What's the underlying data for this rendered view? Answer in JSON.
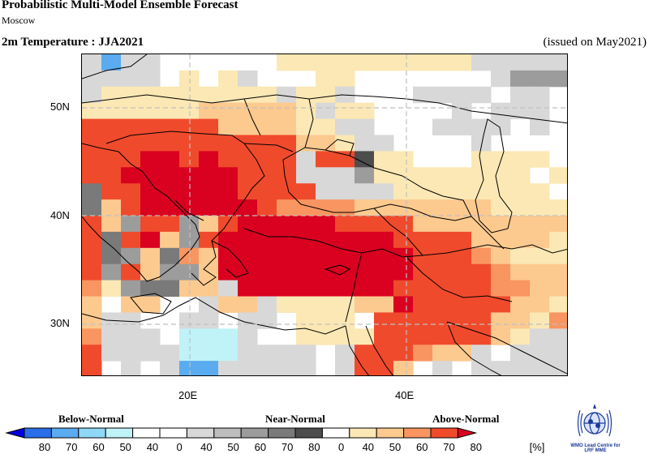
{
  "header": {
    "title": "Probabilistic Multi-Model Ensemble Forecast",
    "subtitle": "Moscow",
    "variable": "2m Temperature : JJA2021",
    "issued": "(issued on May2021)"
  },
  "map": {
    "lat_labels": [
      "50N",
      "40N",
      "30N"
    ],
    "lon_labels": [
      "20E",
      "40E"
    ],
    "category_colors": {
      "below_40": "#bff3f7",
      "below_50": "#8fd8f5",
      "below_60": "#5aabf0",
      "below_70": "#2a6fe8",
      "below_80": "#0000e0",
      "normal_40": "#d8d8d8",
      "normal_50": "#bdbdbd",
      "normal_60": "#9c9c9c",
      "normal_70": "#7a7a7a",
      "normal_80": "#4d4d4d",
      "above_40": "#fbe8b4",
      "above_50": "#fcc98f",
      "above_60": "#f99560",
      "above_70": "#f04a2c",
      "above_80": "#d90020",
      "none": "#ffffff"
    }
  },
  "legend": {
    "below_label": "Below-Normal",
    "near_label": "Near-Normal",
    "above_label": "Above-Normal",
    "ticks": [
      "80",
      "70",
      "60",
      "50",
      "40",
      "0",
      "40",
      "50",
      "60",
      "70",
      "80",
      "0",
      "40",
      "50",
      "60",
      "70",
      "80"
    ],
    "unit": "[%]",
    "colors": [
      "#0000e0",
      "#2a6fe8",
      "#5aabf0",
      "#8fd8f5",
      "#bff3f7",
      "#ffffff",
      "#ffffff",
      "#d8d8d8",
      "#bdbdbd",
      "#9c9c9c",
      "#7a7a7a",
      "#4d4d4d",
      "#ffffff",
      "#fbe8b4",
      "#fcc98f",
      "#f99560",
      "#f04a2c",
      "#d90020"
    ]
  },
  "logo": {
    "text_line1": "WMO Lead Centre for",
    "text_line2": "LRF MME"
  }
}
